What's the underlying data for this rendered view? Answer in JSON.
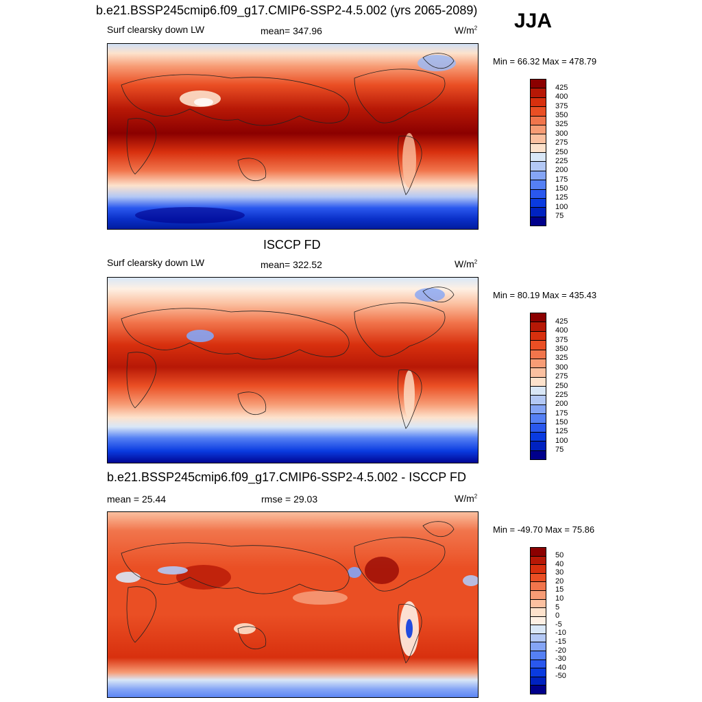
{
  "season": "JJA",
  "colors": {
    "abs_scale": [
      "#00008b",
      "#0022c0",
      "#0a3be0",
      "#2a58ee",
      "#5580f4",
      "#85a5f5",
      "#b3c8f5",
      "#d9e7f7",
      "#fde2cc",
      "#fbc0a0",
      "#f79c75",
      "#f1754c",
      "#ea4f24",
      "#d8300e",
      "#b71806",
      "#8b0000"
    ],
    "diff_scale": [
      "#00008b",
      "#0022c0",
      "#0a3be0",
      "#2a58ee",
      "#5580f4",
      "#85a5f5",
      "#b3c8f5",
      "#d9e7f7",
      "#fef0e4",
      "#fde2cc",
      "#fbc0a0",
      "#f79c75",
      "#f1754c",
      "#ea4f24",
      "#d8300e",
      "#b71806",
      "#8b0000"
    ]
  },
  "panels": [
    {
      "title": "b.e21.BSSP245cmip6.f09_g17.CMIP6-SSP2-4.5.002 (yrs 2065-2089)",
      "left_label": "Surf clearsky down LW",
      "center_label": "mean= 347.96",
      "units": "W/m",
      "units_sup": "2",
      "minmax": "Min =  66.32 Max = 478.79",
      "colorbar_labels": [
        "425",
        "400",
        "375",
        "350",
        "325",
        "300",
        "275",
        "250",
        "225",
        "200",
        "175",
        "150",
        "125",
        "100",
        "75"
      ]
    },
    {
      "title": "ISCCP FD",
      "left_label": "Surf clearsky down LW",
      "center_label": "mean= 322.52",
      "units": "W/m",
      "units_sup": "2",
      "minmax": "Min =  80.19 Max = 435.43",
      "colorbar_labels": [
        "425",
        "400",
        "375",
        "350",
        "325",
        "300",
        "275",
        "250",
        "225",
        "200",
        "175",
        "150",
        "125",
        "100",
        "75"
      ]
    },
    {
      "title": "b.e21.BSSP245cmip6.f09_g17.CMIP6-SSP2-4.5.002 - ISCCP FD",
      "left_label": "mean =  25.44",
      "center_label": "rmse =  29.03",
      "units": "W/m",
      "units_sup": "2",
      "minmax": "Min = -49.70 Max =  75.86",
      "colorbar_labels": [
        "50",
        "40",
        "30",
        "20",
        "15",
        "10",
        "5",
        "0",
        "-5",
        "-10",
        "-15",
        "-20",
        "-30",
        "-40",
        "-50"
      ]
    }
  ]
}
